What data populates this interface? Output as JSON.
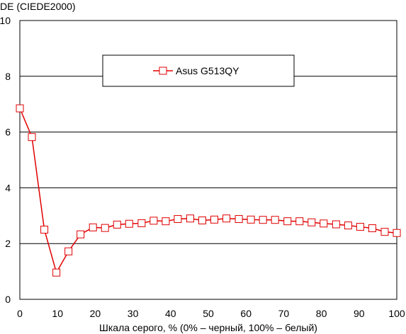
{
  "chart_data": {
    "type": "line",
    "ylabel": "DE (CIEDE2000)",
    "xlabel": "Шкала серого, % (0% – черный, 100% – белый)",
    "xlim": [
      0,
      100
    ],
    "ylim": [
      0,
      10
    ],
    "x_ticks": [
      0,
      10,
      20,
      30,
      40,
      50,
      60,
      70,
      80,
      90,
      100
    ],
    "y_ticks": [
      0,
      2,
      4,
      6,
      8,
      10
    ],
    "grid": "horizontal",
    "legend_position": "top-center",
    "series": [
      {
        "name": "Asus G513QY",
        "color": "#e00000",
        "marker": "square-open",
        "x": [
          0,
          3.2,
          6.5,
          9.7,
          12.9,
          16.1,
          19.4,
          22.6,
          25.8,
          29,
          32.3,
          35.5,
          38.7,
          41.9,
          45.2,
          48.4,
          51.6,
          54.8,
          58.1,
          61.3,
          64.5,
          67.7,
          71,
          74.2,
          77.4,
          80.6,
          83.9,
          87.1,
          90.3,
          93.5,
          96.8,
          100
        ],
        "y": [
          6.85,
          5.82,
          2.5,
          0.96,
          1.72,
          2.33,
          2.58,
          2.56,
          2.68,
          2.71,
          2.73,
          2.82,
          2.8,
          2.88,
          2.9,
          2.83,
          2.86,
          2.9,
          2.88,
          2.86,
          2.85,
          2.85,
          2.8,
          2.8,
          2.76,
          2.72,
          2.69,
          2.65,
          2.6,
          2.55,
          2.42,
          2.38
        ]
      }
    ]
  }
}
